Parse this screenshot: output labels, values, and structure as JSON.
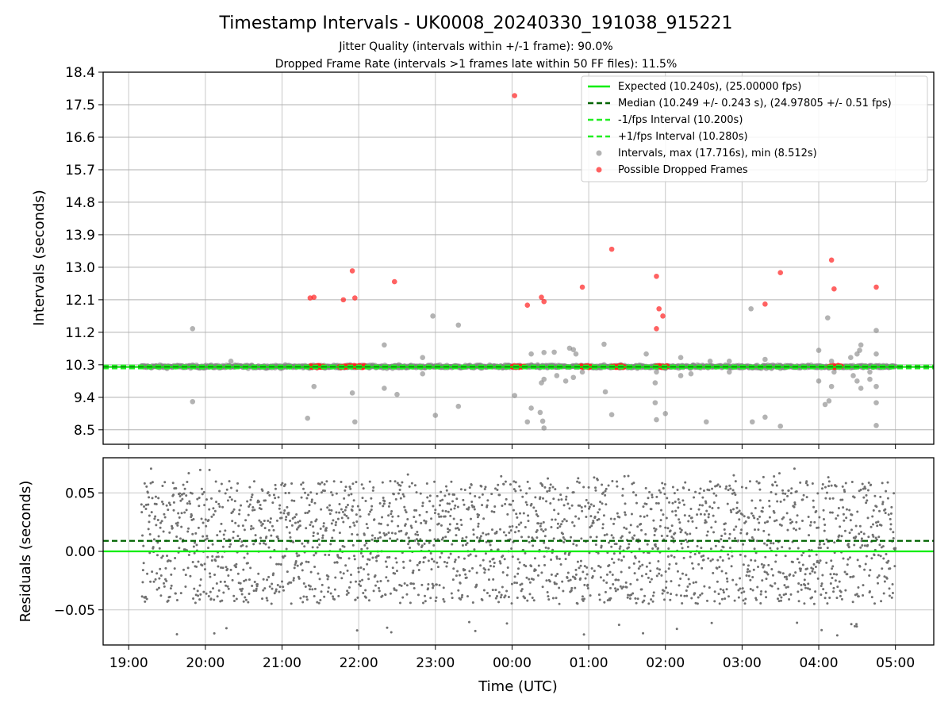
{
  "figure": {
    "title": "Timestamp Intervals - UK0008_20240330_191038_915221",
    "subtitle_1": "Jitter Quality (intervals within +/-1 frame): 90.0%",
    "subtitle_2": "Dropped Frame Rate (intervals >1 frames late within 50 FF files): 11.5%"
  },
  "colors": {
    "expected": "#00ee00",
    "median": "#006400",
    "interval_bounds": "#22ee22",
    "intervals": "#808080",
    "dropped": "#ff2020",
    "grid": "#b0b0b0"
  },
  "chart_data": [
    {
      "type": "scatter",
      "name": "intervals",
      "ylabel": "Intervals (seconds)",
      "xlabel": "",
      "ylim": [
        8.1,
        18.4
      ],
      "yticks": [
        "8.5",
        "9.4",
        "10.3",
        "11.2",
        "12.1",
        "13.0",
        "13.9",
        "14.8",
        "15.7",
        "16.6",
        "17.5",
        "18.4"
      ],
      "grid": true,
      "legend_position": "top-right",
      "reference_lines": [
        {
          "key": "expected",
          "y": 10.24,
          "style": "solid",
          "label": "Expected (10.240s), (25.00000 fps)"
        },
        {
          "key": "median",
          "y": 10.249,
          "style": "dashed",
          "label": "Median (10.249 +/- 0.243 s), (24.97805 +/- 0.51 fps)"
        },
        {
          "key": "lower",
          "y": 10.2,
          "style": "dashed",
          "label": "-1/fps Interval (10.200s)"
        },
        {
          "key": "upper",
          "y": 10.28,
          "style": "dashed",
          "label": "+1/fps Interval (10.280s)"
        }
      ],
      "series_labels": {
        "intervals": "Intervals, max (17.716s), min (8.512s)",
        "dropped": "Possible Dropped Frames"
      },
      "gray_outliers": [
        [
          "19:50",
          11.3
        ],
        [
          "19:50",
          9.28
        ],
        [
          "20:20",
          10.4
        ],
        [
          "21:20",
          8.82
        ],
        [
          "21:25",
          9.7
        ],
        [
          "21:55",
          9.52
        ],
        [
          "21:57",
          8.72
        ],
        [
          "22:20",
          10.85
        ],
        [
          "22:20",
          9.65
        ],
        [
          "22:30",
          9.48
        ],
        [
          "22:50",
          10.5
        ],
        [
          "22:50",
          10.05
        ],
        [
          "22:58",
          11.65
        ],
        [
          "23:00",
          8.9
        ],
        [
          "23:18",
          11.4
        ],
        [
          "23:18",
          9.15
        ],
        [
          "00:02",
          9.45
        ],
        [
          "00:12",
          8.72
        ],
        [
          "00:15",
          10.6
        ],
        [
          "00:15",
          9.1
        ],
        [
          "00:20",
          10.3
        ],
        [
          "00:22",
          8.98
        ],
        [
          "00:23",
          9.8
        ],
        [
          "00:24",
          8.74
        ],
        [
          "00:25",
          8.55
        ],
        [
          "00:25",
          10.64
        ],
        [
          "00:25",
          9.9
        ],
        [
          "00:33",
          10.65
        ],
        [
          "00:35",
          10.0
        ],
        [
          "00:42",
          9.85
        ],
        [
          "00:45",
          10.76
        ],
        [
          "00:48",
          10.72
        ],
        [
          "00:48",
          9.95
        ],
        [
          "00:50",
          10.6
        ],
        [
          "00:55",
          10.1
        ],
        [
          "01:12",
          10.87
        ],
        [
          "01:13",
          9.55
        ],
        [
          "01:18",
          8.92
        ],
        [
          "01:25",
          10.3
        ],
        [
          "01:45",
          10.6
        ],
        [
          "01:52",
          9.25
        ],
        [
          "01:52",
          9.8
        ],
        [
          "01:53",
          8.78
        ],
        [
          "01:53",
          10.1
        ],
        [
          "02:00",
          8.95
        ],
        [
          "02:00",
          10.2
        ],
        [
          "02:12",
          10.0
        ],
        [
          "02:12",
          10.5
        ],
        [
          "02:20",
          10.05
        ],
        [
          "02:32",
          8.72
        ],
        [
          "02:35",
          10.4
        ],
        [
          "02:50",
          10.4
        ],
        [
          "02:50",
          10.1
        ],
        [
          "03:07",
          11.85
        ],
        [
          "03:08",
          8.72
        ],
        [
          "03:18",
          8.85
        ],
        [
          "03:18",
          10.45
        ],
        [
          "03:30",
          8.6
        ],
        [
          "03:30",
          10.2
        ],
        [
          "04:00",
          9.85
        ],
        [
          "04:00",
          10.7
        ],
        [
          "04:05",
          9.2
        ],
        [
          "04:07",
          11.6
        ],
        [
          "04:08",
          9.3
        ],
        [
          "04:10",
          9.7
        ],
        [
          "04:10",
          10.4
        ],
        [
          "04:12",
          10.1
        ],
        [
          "04:25",
          10.5
        ],
        [
          "04:27",
          10.0
        ],
        [
          "04:30",
          10.6
        ],
        [
          "04:30",
          9.85
        ],
        [
          "04:32",
          10.7
        ],
        [
          "04:33",
          10.85
        ],
        [
          "04:33",
          9.65
        ],
        [
          "04:40",
          10.1
        ],
        [
          "04:40",
          9.9
        ],
        [
          "04:45",
          10.6
        ],
        [
          "04:45",
          9.25
        ],
        [
          "04:45",
          8.62
        ],
        [
          "04:45",
          9.7
        ],
        [
          "04:45",
          11.25
        ]
      ],
      "dropped_points": [
        [
          "21:22",
          12.15
        ],
        [
          "21:25",
          12.17
        ],
        [
          "21:48",
          12.1
        ],
        [
          "21:55",
          12.9
        ],
        [
          "21:57",
          12.15
        ],
        [
          "22:28",
          12.6
        ],
        [
          "00:02",
          17.75
        ],
        [
          "00:12",
          11.95
        ],
        [
          "00:23",
          12.17
        ],
        [
          "00:25",
          12.05
        ],
        [
          "00:55",
          12.45
        ],
        [
          "01:18",
          13.5
        ],
        [
          "01:53",
          12.75
        ],
        [
          "01:55",
          11.85
        ],
        [
          "01:53",
          11.3
        ],
        [
          "01:58",
          11.65
        ],
        [
          "03:18",
          11.98
        ],
        [
          "03:30",
          12.85
        ],
        [
          "04:10",
          13.2
        ],
        [
          "04:12",
          12.4
        ],
        [
          "04:45",
          12.45
        ]
      ],
      "dropped_clusters": [
        [
          "21:22",
          "21:33"
        ],
        [
          "21:45",
          "22:05"
        ],
        [
          "00:00",
          "00:10"
        ],
        [
          "00:53",
          "01:02"
        ],
        [
          "01:18",
          "01:28"
        ],
        [
          "01:52",
          "02:02"
        ],
        [
          "04:08",
          "04:18"
        ]
      ],
      "main_band": {
        "x_range": [
          "19:10",
          "05:00"
        ],
        "y_center": 10.25,
        "y_spread": 0.04
      }
    },
    {
      "type": "scatter",
      "name": "residuals",
      "ylabel": "Residuals (seconds)",
      "xlabel": "Time (UTC)",
      "ylim": [
        -0.08,
        0.08
      ],
      "yticks": [
        "−0.05",
        "0.00",
        "0.05"
      ],
      "ytick_values": [
        -0.05,
        0,
        0.05
      ],
      "xticks": [
        "19:00",
        "20:00",
        "21:00",
        "22:00",
        "23:00",
        "00:00",
        "01:00",
        "02:00",
        "03:00",
        "04:00",
        "05:00"
      ],
      "xlim": [
        "18:40",
        "05:30"
      ],
      "grid": true,
      "reference_lines": [
        {
          "key": "expected",
          "y": 0.0,
          "style": "solid"
        },
        {
          "key": "median",
          "y": 0.009,
          "style": "dashed"
        }
      ],
      "residual_range": {
        "x_range": [
          "19:10",
          "05:00"
        ],
        "y_min": -0.045,
        "y_max": 0.06
      }
    }
  ]
}
